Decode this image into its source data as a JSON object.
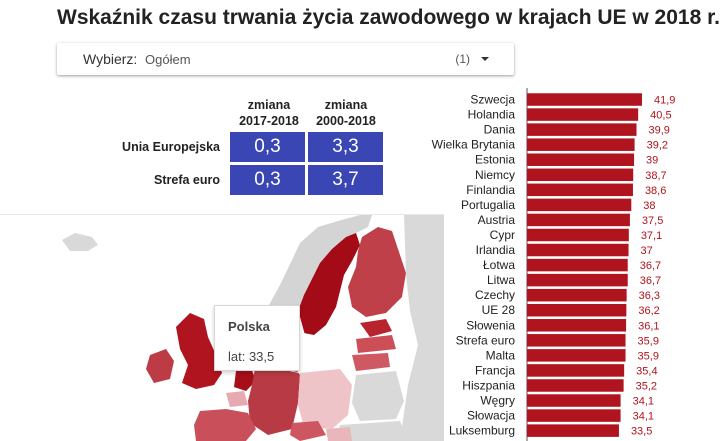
{
  "title": "Wskaźnik czasu trwania życia zawodowego w krajach UE w 2018 r.",
  "filter": {
    "label": "Wybierz:",
    "value": "Ogółem",
    "count": "(1)",
    "icon": "dropdown-arrow-icon"
  },
  "summary_table": {
    "columns": [
      {
        "line1": "zmiana",
        "line2": "2017-2018"
      },
      {
        "line1": "zmiana",
        "line2": "2000-2018"
      }
    ],
    "rows": [
      {
        "label": "Unia Europejska",
        "values": [
          "0,3",
          "3,3"
        ]
      },
      {
        "label": "Strefa euro",
        "values": [
          "0,3",
          "3,7"
        ]
      }
    ],
    "cell_color": "#3a46b3"
  },
  "map": {
    "tooltip": {
      "country": "Polska",
      "value": "lat: 33,5"
    }
  },
  "chart_data": {
    "type": "bar",
    "orientation": "horizontal",
    "categories": [
      "Szwecja",
      "Holandia",
      "Dania",
      "Wielka Brytania",
      "Estonia",
      "Niemcy",
      "Finlandia",
      "Portugalia",
      "Austria",
      "Cypr",
      "Irlandia",
      "Łotwa",
      "Litwa",
      "Czechy",
      "UE 28",
      "Słowenia",
      "Strefa euro",
      "Malta",
      "Francja",
      "Hiszpania",
      "Węgry",
      "Słowacja",
      "Luksemburg"
    ],
    "values": [
      41.9,
      40.5,
      39.9,
      39.2,
      39,
      38.7,
      38.6,
      38,
      37.5,
      37.1,
      37,
      36.7,
      36.7,
      36.3,
      36.2,
      36.1,
      35.9,
      35.9,
      35.4,
      35.2,
      34.1,
      34.1,
      33.5
    ],
    "labels": [
      "41,9",
      "40,5",
      "39,9",
      "39,2",
      "39",
      "38,7",
      "38,6",
      "38",
      "37,5",
      "37,1",
      "37",
      "36,7",
      "36,7",
      "36,3",
      "36,2",
      "36,1",
      "35,9",
      "35,9",
      "35,4",
      "35,2",
      "34,1",
      "34,1",
      "33,5"
    ],
    "title": "",
    "xlabel": "",
    "ylabel": "",
    "bar_color": "#b0141e",
    "label_color": "#b0141e"
  }
}
